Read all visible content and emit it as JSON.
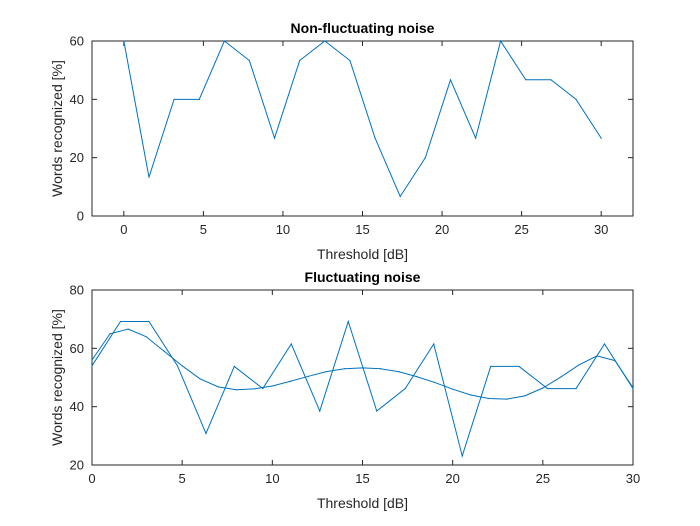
{
  "chart_data": [
    {
      "type": "line",
      "title": "Non-fluctuating noise",
      "xlabel": "Threshold [dB]",
      "ylabel": "Words recognized [%]",
      "xlim": [
        -2,
        32
      ],
      "ylim": [
        0,
        60
      ],
      "xticks": [
        0,
        5,
        10,
        15,
        20,
        25,
        30
      ],
      "yticks": [
        0,
        20,
        40,
        60
      ],
      "grid": false,
      "color": "#0072bd",
      "series": [
        {
          "x": [
            0,
            1.58,
            3.16,
            4.74,
            6.32,
            7.89,
            9.47,
            11.05,
            12.63,
            14.21,
            15.79,
            17.37,
            18.95,
            20.53,
            22.11,
            23.68,
            25.26,
            26.84,
            28.42,
            30.0
          ],
          "y": [
            60,
            13.3,
            40,
            40,
            60,
            53.3,
            26.7,
            53.3,
            60,
            53.3,
            26.7,
            6.7,
            20,
            46.7,
            26.7,
            60,
            46.7,
            46.7,
            40,
            26.7
          ]
        }
      ]
    },
    {
      "type": "line",
      "title": "Fluctuating noise",
      "xlabel": "Threshold [dB]",
      "ylabel": "Words recognized [%]",
      "xlim": [
        0,
        30
      ],
      "ylim": [
        20,
        80
      ],
      "xticks": [
        0,
        5,
        10,
        15,
        20,
        25,
        30
      ],
      "yticks": [
        20,
        40,
        60,
        80
      ],
      "grid": false,
      "color": "#0072bd",
      "series": [
        {
          "x": [
            0,
            1.58,
            3.16,
            4.74,
            6.32,
            7.89,
            9.47,
            11.05,
            12.63,
            14.21,
            15.79,
            17.37,
            18.95,
            20.53,
            22.11,
            23.68,
            25.26,
            26.84,
            28.42,
            30.0
          ],
          "y": [
            54,
            69.2,
            69.2,
            54,
            30.8,
            53.8,
            46.2,
            61.5,
            38.5,
            69.2,
            38.5,
            46.2,
            61.5,
            23.1,
            53.8,
            53.8,
            46.2,
            46.2,
            61.5,
            46.2
          ]
        },
        {
          "x": [
            0,
            1,
            2,
            3,
            4,
            5,
            6,
            7,
            8,
            9,
            10,
            11,
            12,
            13,
            14,
            15,
            16,
            17,
            18,
            19,
            20,
            21,
            22,
            23,
            24,
            25,
            26,
            27,
            28,
            29,
            30
          ],
          "y": [
            56,
            65,
            66.6,
            64,
            59,
            54,
            49.5,
            46.8,
            45.8,
            46.1,
            47.1,
            48.7,
            50.4,
            52,
            53,
            53.3,
            53,
            52,
            50.3,
            48.3,
            46,
            44,
            42.8,
            42.6,
            43.7,
            46.4,
            50.2,
            54.3,
            57.4,
            55.8,
            46.5
          ]
        }
      ]
    }
  ]
}
